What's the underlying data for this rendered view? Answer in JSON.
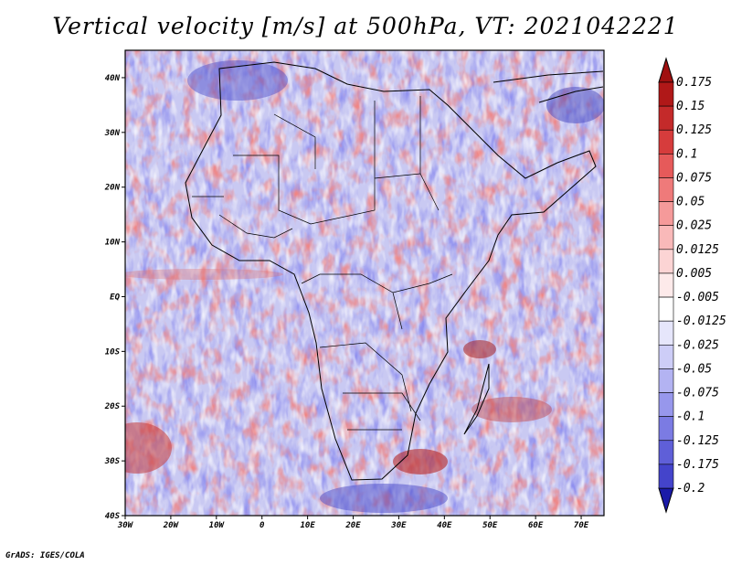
{
  "title": "Vertical velocity [m/s] at 500hPa, VT: 2021042221",
  "credit": "GrADS: IGES/COLA",
  "map": {
    "lon_range": [
      -30,
      75
    ],
    "lat_range": [
      -40,
      45
    ],
    "x_ticks": [
      {
        "lon": -30,
        "label": "30W"
      },
      {
        "lon": -20,
        "label": "20W"
      },
      {
        "lon": -10,
        "label": "10W"
      },
      {
        "lon": 0,
        "label": "0"
      },
      {
        "lon": 10,
        "label": "10E"
      },
      {
        "lon": 20,
        "label": "20E"
      },
      {
        "lon": 30,
        "label": "30E"
      },
      {
        "lon": 40,
        "label": "40E"
      },
      {
        "lon": 50,
        "label": "50E"
      },
      {
        "lon": 60,
        "label": "60E"
      },
      {
        "lon": 70,
        "label": "70E"
      }
    ],
    "y_ticks": [
      {
        "lat": 40,
        "label": "40N"
      },
      {
        "lat": 30,
        "label": "30N"
      },
      {
        "lat": 20,
        "label": "20N"
      },
      {
        "lat": 10,
        "label": "10N"
      },
      {
        "lat": 0,
        "label": "EQ"
      },
      {
        "lat": -10,
        "label": "10S"
      },
      {
        "lat": -20,
        "label": "20S"
      },
      {
        "lat": -30,
        "label": "30S"
      },
      {
        "lat": -40,
        "label": "40S"
      }
    ]
  },
  "colorbar": {
    "levels": [
      {
        "label": "0.175",
        "color": "#b01818"
      },
      {
        "label": "0.15",
        "color": "#c42a2a"
      },
      {
        "label": "0.125",
        "color": "#d63c3c"
      },
      {
        "label": "0.1",
        "color": "#e65a5a"
      },
      {
        "label": "0.075",
        "color": "#ef7a7a"
      },
      {
        "label": "0.05",
        "color": "#f59a9a"
      },
      {
        "label": "0.025",
        "color": "#f9b9b9"
      },
      {
        "label": "0.0125",
        "color": "#fcd4d4"
      },
      {
        "label": "0.005",
        "color": "#fdeaea"
      },
      {
        "label": "-0.005",
        "color": "#ffffff"
      },
      {
        "label": "-0.0125",
        "color": "#e6e6fb"
      },
      {
        "label": "-0.025",
        "color": "#cdcdf7"
      },
      {
        "label": "-0.05",
        "color": "#b3b3f2"
      },
      {
        "label": "-0.075",
        "color": "#9797ec"
      },
      {
        "label": "-0.1",
        "color": "#7b7be3"
      },
      {
        "label": "-0.125",
        "color": "#5f5fd8"
      },
      {
        "label": "-0.175",
        "color": "#4444cb"
      },
      {
        "label": "-0.2",
        "color": "#2a2abc"
      }
    ],
    "top_color": "#a01010",
    "bottom_color": "#1a1aa8"
  }
}
